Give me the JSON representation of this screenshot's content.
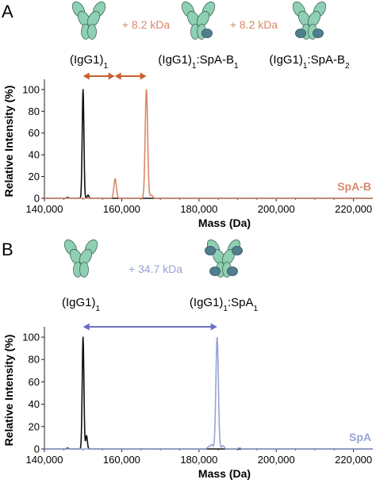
{
  "colors": {
    "igg": "#111111",
    "spab": "#d9876a",
    "spab_arrow": "#c9602e",
    "spa": "#97a3d6",
    "spa_arrow": "#6a6fc0",
    "antibody_fill": "#8fcfb3",
    "antibody_stroke": "#3e6b58",
    "protein_fill": "#4f7e8f"
  },
  "chart_data": [
    {
      "id": "A",
      "type": "line",
      "panel_label": "A",
      "xlabel": "Mass (Da)",
      "ylabel": "Relative Intensity (%)",
      "xlim": [
        140000,
        225000
      ],
      "ylim": [
        0,
        105
      ],
      "xticks": [
        140000,
        160000,
        180000,
        200000,
        220000
      ],
      "xtick_labels": [
        "140,000",
        "160,000",
        "180,000",
        "200,000",
        "220,000"
      ],
      "yticks": [
        0,
        20,
        40,
        60,
        80,
        100
      ],
      "ytick_labels": [
        "0",
        "20",
        "40",
        "60",
        "80",
        "100"
      ],
      "species": [
        {
          "label": "(IgG1)",
          "sub": "1",
          "mass": 150000,
          "bound": 0
        },
        {
          "label": "(IgG1)",
          "sub": "1",
          "suffix": ":SpA-B",
          "sub2": "1",
          "mass": 158200,
          "bound": 1
        },
        {
          "label": "(IgG1)",
          "sub": "1",
          "suffix": ":SpA-B",
          "sub2": "2",
          "mass": 166400,
          "bound": 2
        }
      ],
      "deltas": [
        "+ 8.2 kDa",
        "+ 8.2 kDa"
      ],
      "mass_arrows": [
        [
          150000,
          158200
        ],
        [
          158200,
          166400
        ]
      ],
      "series": [
        {
          "name": "",
          "color_key": "igg",
          "peaks": [
            {
              "x": 150000,
              "y": 100
            },
            {
              "x": 151300,
              "y": 3
            },
            {
              "x": 146000,
              "y": 0.8
            }
          ]
        },
        {
          "name": "SpA-B",
          "color_key": "spab",
          "peaks": [
            {
              "x": 158300,
              "y": 18
            },
            {
              "x": 166400,
              "y": 100
            },
            {
              "x": 167700,
              "y": 3
            }
          ]
        }
      ],
      "series_tag": "SpA-B"
    },
    {
      "id": "B",
      "type": "line",
      "panel_label": "B",
      "xlabel": "Mass (Da)",
      "ylabel": "Relative Intensity (%)",
      "xlim": [
        140000,
        225000
      ],
      "ylim": [
        0,
        105
      ],
      "xticks": [
        140000,
        160000,
        180000,
        200000,
        220000
      ],
      "xtick_labels": [
        "140,000",
        "160,000",
        "180,000",
        "200,000",
        "220,000"
      ],
      "yticks": [
        0,
        20,
        40,
        60,
        80,
        100
      ],
      "ytick_labels": [
        "0",
        "20",
        "40",
        "60",
        "80",
        "100"
      ],
      "species": [
        {
          "label": "(IgG1)",
          "sub": "1",
          "mass": 150000,
          "bound": 0
        },
        {
          "label": "(IgG1)",
          "sub": "1",
          "suffix": ":SpA",
          "sub2": "1",
          "mass": 184700,
          "bound": 4
        }
      ],
      "deltas": [
        "+ 34.7 kDa"
      ],
      "mass_arrows": [
        [
          150000,
          184700
        ]
      ],
      "series": [
        {
          "name": "",
          "color_key": "igg",
          "peaks": [
            {
              "x": 150000,
              "y": 100
            },
            {
              "x": 150900,
              "y": 12
            },
            {
              "x": 146000,
              "y": 0.8
            }
          ]
        },
        {
          "name": "SpA",
          "color_key": "spa",
          "peaks": [
            {
              "x": 184700,
              "y": 100
            },
            {
              "x": 183300,
              "y": 4
            },
            {
              "x": 182500,
              "y": 2
            },
            {
              "x": 186200,
              "y": 3
            },
            {
              "x": 190500,
              "y": 1
            }
          ]
        }
      ],
      "series_tag": "SpA"
    }
  ]
}
